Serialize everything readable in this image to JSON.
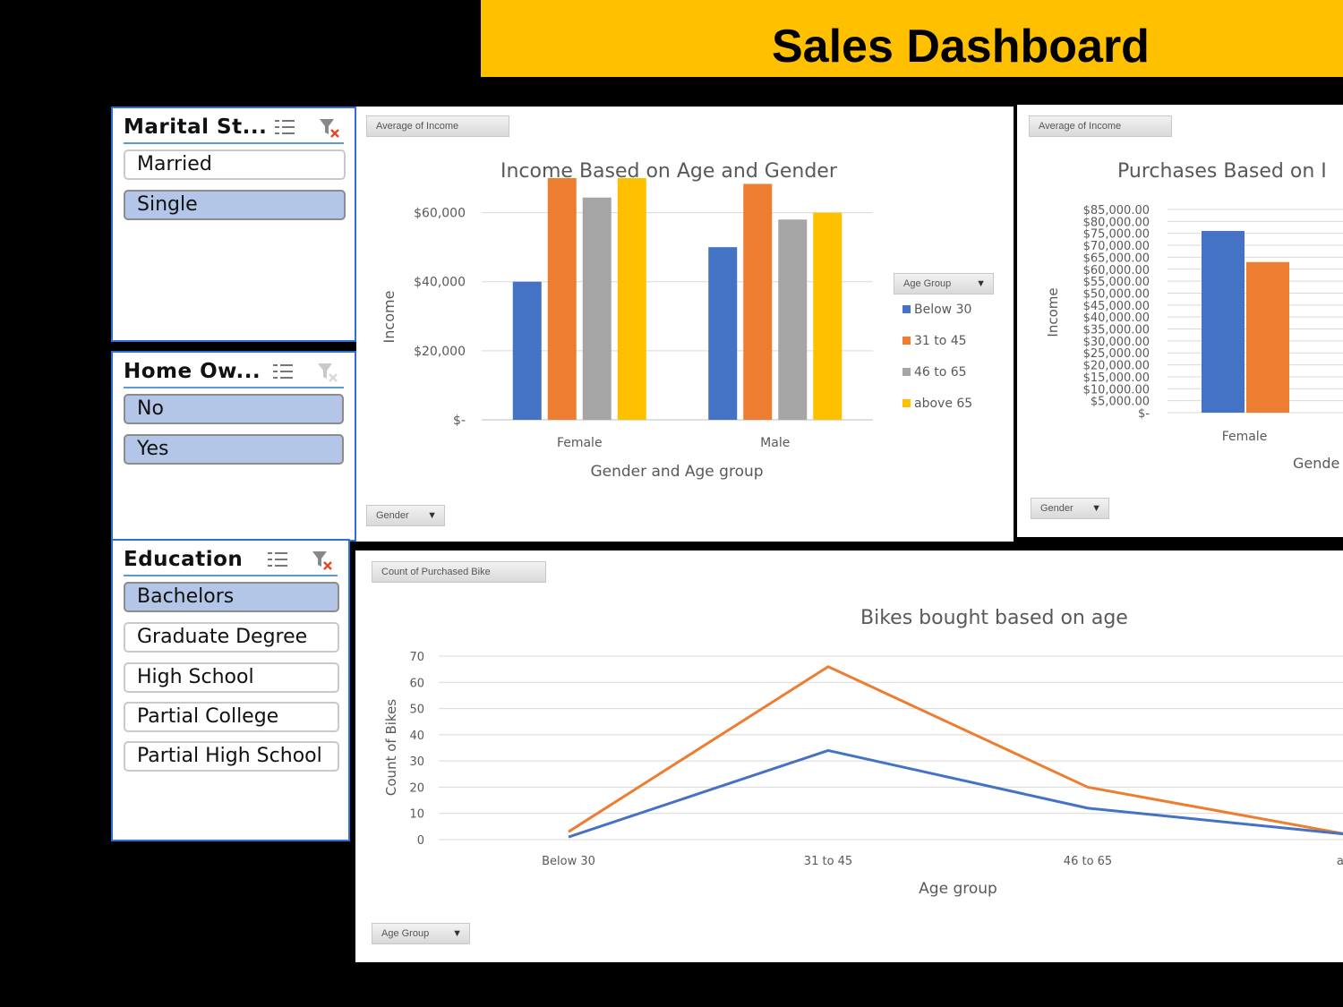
{
  "dashboard": {
    "title": "Sales Dashboard"
  },
  "slicers": {
    "marital": {
      "title": "Marital St...",
      "items": [
        {
          "label": "Married",
          "selected": false
        },
        {
          "label": "Single",
          "selected": true
        }
      ]
    },
    "home": {
      "title": "Home Ow...",
      "items": [
        {
          "label": "No",
          "selected": true
        },
        {
          "label": "Yes",
          "selected": true
        }
      ]
    },
    "education": {
      "title": "Education",
      "items": [
        {
          "label": "Bachelors",
          "selected": true
        },
        {
          "label": "Graduate Degree",
          "selected": false
        },
        {
          "label": "High School",
          "selected": false
        },
        {
          "label": "Partial College",
          "selected": false
        },
        {
          "label": "Partial High School",
          "selected": false
        }
      ]
    }
  },
  "income_chart": {
    "value_field": "Average of Income",
    "axis_field": "Gender",
    "legend_field": "Age Group",
    "title": "Income Based on Age and Gender"
  },
  "purchase_chart": {
    "value_field": "Average of Income",
    "axis_field": "Gender",
    "title": "Purchases Based on I",
    "xlabel_partial": "Gende"
  },
  "bikes_chart": {
    "value_field": "Count of Purchased Bike",
    "axis_field": "Age Group",
    "title": "Bikes bought based on age"
  },
  "colors": {
    "blue": "#4472c4",
    "orange": "#ed7d31",
    "gray": "#a5a5a5",
    "yellow": "#ffc000",
    "accent": "#ffc000"
  },
  "chart_data": [
    {
      "type": "bar",
      "title": "Income Based on Age and Gender",
      "xlabel": "Gender and Age group",
      "ylabel": "Income",
      "categories": [
        "Female",
        "Male"
      ],
      "ylim": [
        0,
        70000
      ],
      "yticks": [
        0,
        20000,
        40000,
        60000
      ],
      "ytick_labels": [
        "$-",
        "$20,000",
        "$40,000",
        "$60,000"
      ],
      "legend_title": "Age Group",
      "legend_position": "right",
      "grid": true,
      "series": [
        {
          "name": "Below 30",
          "color": "#4472c4",
          "values": [
            40000,
            50000
          ]
        },
        {
          "name": "31 to 45",
          "color": "#ed7d31",
          "values": [
            70000,
            68333
          ]
        },
        {
          "name": "46 to 65",
          "color": "#a5a5a5",
          "values": [
            64375,
            58000
          ]
        },
        {
          "name": "above 65",
          "color": "#ffc000",
          "values": [
            70000,
            60000
          ]
        }
      ]
    },
    {
      "type": "bar",
      "title": "Purchases Based on I",
      "ylabel": "Income",
      "categories": [
        "Female"
      ],
      "ylim": [
        0,
        85000
      ],
      "yticks": [
        0,
        5000,
        10000,
        15000,
        20000,
        25000,
        30000,
        35000,
        40000,
        45000,
        50000,
        55000,
        60000,
        65000,
        70000,
        75000,
        80000,
        85000
      ],
      "ytick_labels": [
        "$-",
        "$5,000.00",
        "$10,000.00",
        "$15,000.00",
        "$20,000.00",
        "$25,000.00",
        "$30,000.00",
        "$35,000.00",
        "$40,000.00",
        "$45,000.00",
        "$50,000.00",
        "$55,000.00",
        "$60,000.00",
        "$65,000.00",
        "$70,000.00",
        "$75,000.00",
        "$80,000.00",
        "$85,000.00"
      ],
      "grid": true,
      "series": [
        {
          "color": "#4472c4",
          "values": [
            76000
          ]
        },
        {
          "color": "#ed7d31",
          "values": [
            63000
          ]
        }
      ]
    },
    {
      "type": "line",
      "title": "Bikes bought based on age",
      "xlabel": "Age group",
      "ylabel": "Count of Bikes",
      "categories": [
        "Below 30",
        "31 to 45",
        "46 to 65",
        "abo"
      ],
      "ylim": [
        0,
        70
      ],
      "yticks": [
        0,
        10,
        20,
        30,
        40,
        50,
        60,
        70
      ],
      "grid": true,
      "series": [
        {
          "color": "#ed7d31",
          "values": [
            3,
            66,
            20,
            2
          ]
        },
        {
          "color": "#4472c4",
          "values": [
            1,
            34,
            12,
            2
          ]
        }
      ]
    }
  ]
}
